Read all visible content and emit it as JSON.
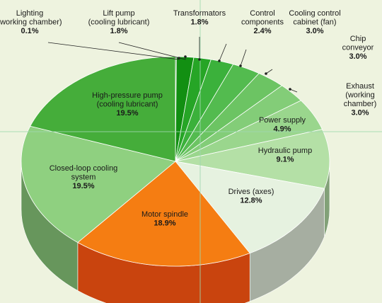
{
  "chart_data": {
    "type": "pie",
    "title": "",
    "unit": "%",
    "slices": [
      {
        "label": "Lighting (working chamber)",
        "value": 0.1,
        "display": "0.1%",
        "color": "#1f7a1f"
      },
      {
        "label": "Lift pump (cooling lubricant)",
        "value": 1.8,
        "display": "1.8%",
        "color": "#128f12"
      },
      {
        "label": "Transformators",
        "value": 1.8,
        "display": "1.8%",
        "color": "#26a526"
      },
      {
        "label": "Control components",
        "value": 2.4,
        "display": "2.4%",
        "color": "#3bb13b"
      },
      {
        "label": "Cooling control cabinet (fan)",
        "value": 3.0,
        "display": "3.0%",
        "color": "#53bb4f"
      },
      {
        "label": "Chip conveyor",
        "value": 3.0,
        "display": "3.0%",
        "color": "#6cc463"
      },
      {
        "label": "Exhaust (working chamber)",
        "value": 3.0,
        "display": "3.0%",
        "color": "#83cd78"
      },
      {
        "label": "Power supply",
        "value": 4.9,
        "display": "4.9%",
        "color": "#9ad68d"
      },
      {
        "label": "Hydraulic pump",
        "value": 9.1,
        "display": "9.1%",
        "color": "#b4e0a6"
      },
      {
        "label": "Drives (axes)",
        "value": 12.8,
        "display": "12.8%",
        "color": "#e6f2e0"
      },
      {
        "label": "Motor spindle",
        "value": 18.9,
        "display": "18.9%",
        "color": "#f57d12"
      },
      {
        "label": "Closed-loop cooling system",
        "value": 19.5,
        "display": "19.5%",
        "color": "#8fd080"
      },
      {
        "label": "High-pressure pump (cooling lubricant)",
        "value": 19.5,
        "display": "19.5%",
        "color": "#45ad3a"
      }
    ]
  },
  "labels": [
    {
      "lines": [
        "Lighting",
        "(working chamber)"
      ],
      "value": "0.1%"
    },
    {
      "lines": [
        "Lift pump",
        "(cooling lubricant)"
      ],
      "value": "1.8%"
    },
    {
      "lines": [
        "Transformators"
      ],
      "value": "1.8%"
    },
    {
      "lines": [
        "Control",
        "components"
      ],
      "value": "2.4%"
    },
    {
      "lines": [
        "Cooling control",
        "cabinet (fan)"
      ],
      "value": "3.0%"
    },
    {
      "lines": [
        "Chip",
        "conveyor"
      ],
      "value": "3.0%"
    },
    {
      "lines": [
        "Exhaust",
        "(working",
        "chamber)"
      ],
      "value": "3.0%"
    },
    {
      "lines": [
        "Power supply"
      ],
      "value": "4.9%"
    },
    {
      "lines": [
        "Hydraulic pump"
      ],
      "value": "9.1%"
    },
    {
      "lines": [
        "Drives (axes)"
      ],
      "value": "12.8%"
    },
    {
      "lines": [
        "Motor spindle"
      ],
      "value": "18.9%"
    },
    {
      "lines": [
        "Closed-loop cooling",
        "system"
      ],
      "value": "19.5%"
    },
    {
      "lines": [
        "High-pressure pump",
        "(cooling lubricant)"
      ],
      "value": "19.5%"
    }
  ]
}
